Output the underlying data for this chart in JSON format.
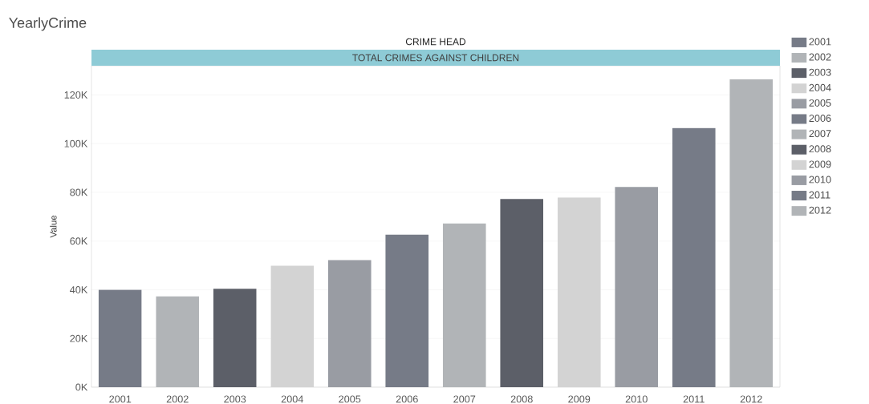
{
  "chart_data": {
    "type": "bar",
    "title": "YearlyCrime",
    "subtitle": "CRIME HEAD",
    "annotations": [
      "TOTAL CRIMES AGAINST CHILDREN"
    ],
    "ylabel": "Value",
    "categories": [
      "2001",
      "2002",
      "2003",
      "2004",
      "2005",
      "2006",
      "2007",
      "2008",
      "2009",
      "2010",
      "2011",
      "2012"
    ],
    "series": [
      {
        "name": "2001",
        "color": "#767b87",
        "values": [
          40000,
          null,
          null,
          null,
          null,
          null,
          null,
          null,
          null,
          null,
          null,
          null
        ]
      },
      {
        "name": "2002",
        "color": "#b1b4b7",
        "values": [
          null,
          37400,
          null,
          null,
          null,
          null,
          null,
          null,
          null,
          null,
          null,
          null
        ]
      },
      {
        "name": "2003",
        "color": "#5c5f68",
        "values": [
          null,
          null,
          40400,
          null,
          null,
          null,
          null,
          null,
          null,
          null,
          null,
          null
        ]
      },
      {
        "name": "2004",
        "color": "#d3d3d3",
        "values": [
          null,
          null,
          null,
          49900,
          null,
          null,
          null,
          null,
          null,
          null,
          null,
          null
        ]
      },
      {
        "name": "2005",
        "color": "#999ca3",
        "values": [
          null,
          null,
          null,
          null,
          52200,
          null,
          null,
          null,
          null,
          null,
          null,
          null
        ]
      },
      {
        "name": "2006",
        "color": "#767b87",
        "values": [
          null,
          null,
          null,
          null,
          null,
          62600,
          null,
          null,
          null,
          null,
          null,
          null
        ]
      },
      {
        "name": "2007",
        "color": "#b1b4b7",
        "values": [
          null,
          null,
          null,
          null,
          null,
          null,
          67200,
          null,
          null,
          null,
          null,
          null
        ]
      },
      {
        "name": "2008",
        "color": "#5c5f68",
        "values": [
          null,
          null,
          null,
          null,
          null,
          null,
          null,
          77300,
          null,
          null,
          null,
          null
        ]
      },
      {
        "name": "2009",
        "color": "#d3d3d3",
        "values": [
          null,
          null,
          null,
          null,
          null,
          null,
          null,
          null,
          77900,
          null,
          null,
          null
        ]
      },
      {
        "name": "2010",
        "color": "#999ca3",
        "values": [
          null,
          null,
          null,
          null,
          null,
          null,
          null,
          null,
          null,
          82200,
          null,
          null
        ]
      },
      {
        "name": "2011",
        "color": "#767b87",
        "values": [
          null,
          null,
          null,
          null,
          null,
          null,
          null,
          null,
          null,
          null,
          106400,
          null
        ]
      },
      {
        "name": "2012",
        "color": "#b1b4b7",
        "values": [
          null,
          null,
          null,
          null,
          null,
          null,
          null,
          null,
          null,
          null,
          null,
          126400
        ]
      }
    ],
    "ylim": [
      0,
      132000
    ],
    "yticks": [
      {
        "value": 0,
        "label": "0K"
      },
      {
        "value": 20000,
        "label": "20K"
      },
      {
        "value": 40000,
        "label": "40K"
      },
      {
        "value": 60000,
        "label": "60K"
      },
      {
        "value": 80000,
        "label": "80K"
      },
      {
        "value": 100000,
        "label": "100K"
      },
      {
        "value": 120000,
        "label": "120K"
      }
    ],
    "grid": "y",
    "legend": "top right"
  }
}
